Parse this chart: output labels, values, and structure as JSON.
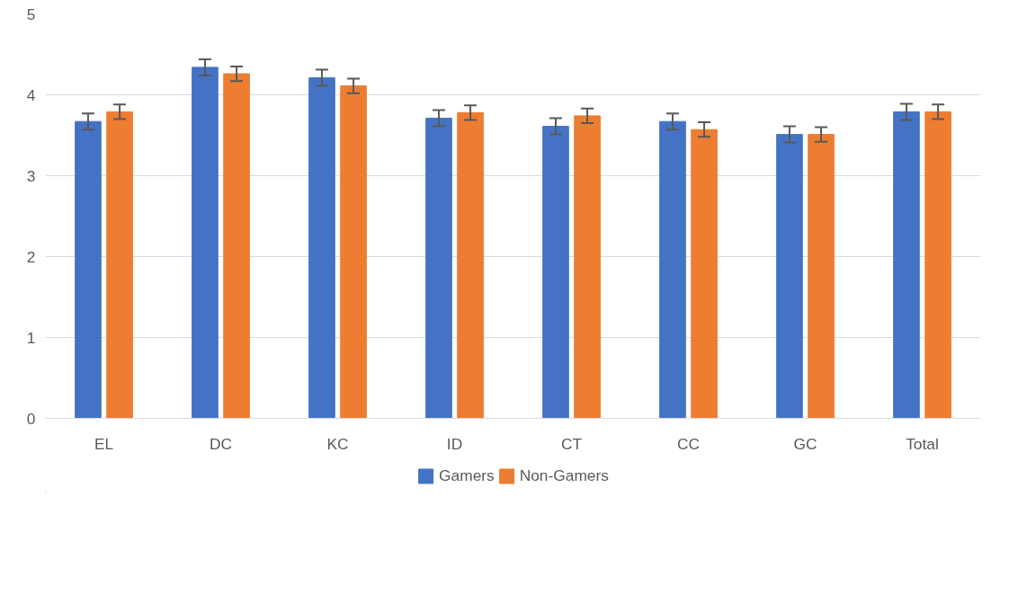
{
  "chart_data": {
    "type": "bar",
    "categories": [
      "EL",
      "DC",
      "KC",
      "ID",
      "CT",
      "CC",
      "GC",
      "Total"
    ],
    "series": [
      {
        "name": "Gamers",
        "color": "#4472c4",
        "values": [
          3.67,
          4.34,
          4.21,
          3.71,
          3.61,
          3.67,
          3.51,
          3.79
        ],
        "errors": [
          0.1,
          0.1,
          0.1,
          0.1,
          0.1,
          0.1,
          0.1,
          0.1
        ]
      },
      {
        "name": "Non-Gamers",
        "color": "#ed7d31",
        "values": [
          3.79,
          4.26,
          4.11,
          3.78,
          3.74,
          3.57,
          3.51,
          3.79
        ],
        "errors": [
          0.09,
          0.09,
          0.09,
          0.09,
          0.09,
          0.09,
          0.09,
          0.09
        ]
      }
    ],
    "ylim": [
      0,
      5
    ],
    "yticks": [
      0,
      1,
      2,
      3,
      4,
      5
    ],
    "grid": "y",
    "legend": "bottom"
  }
}
